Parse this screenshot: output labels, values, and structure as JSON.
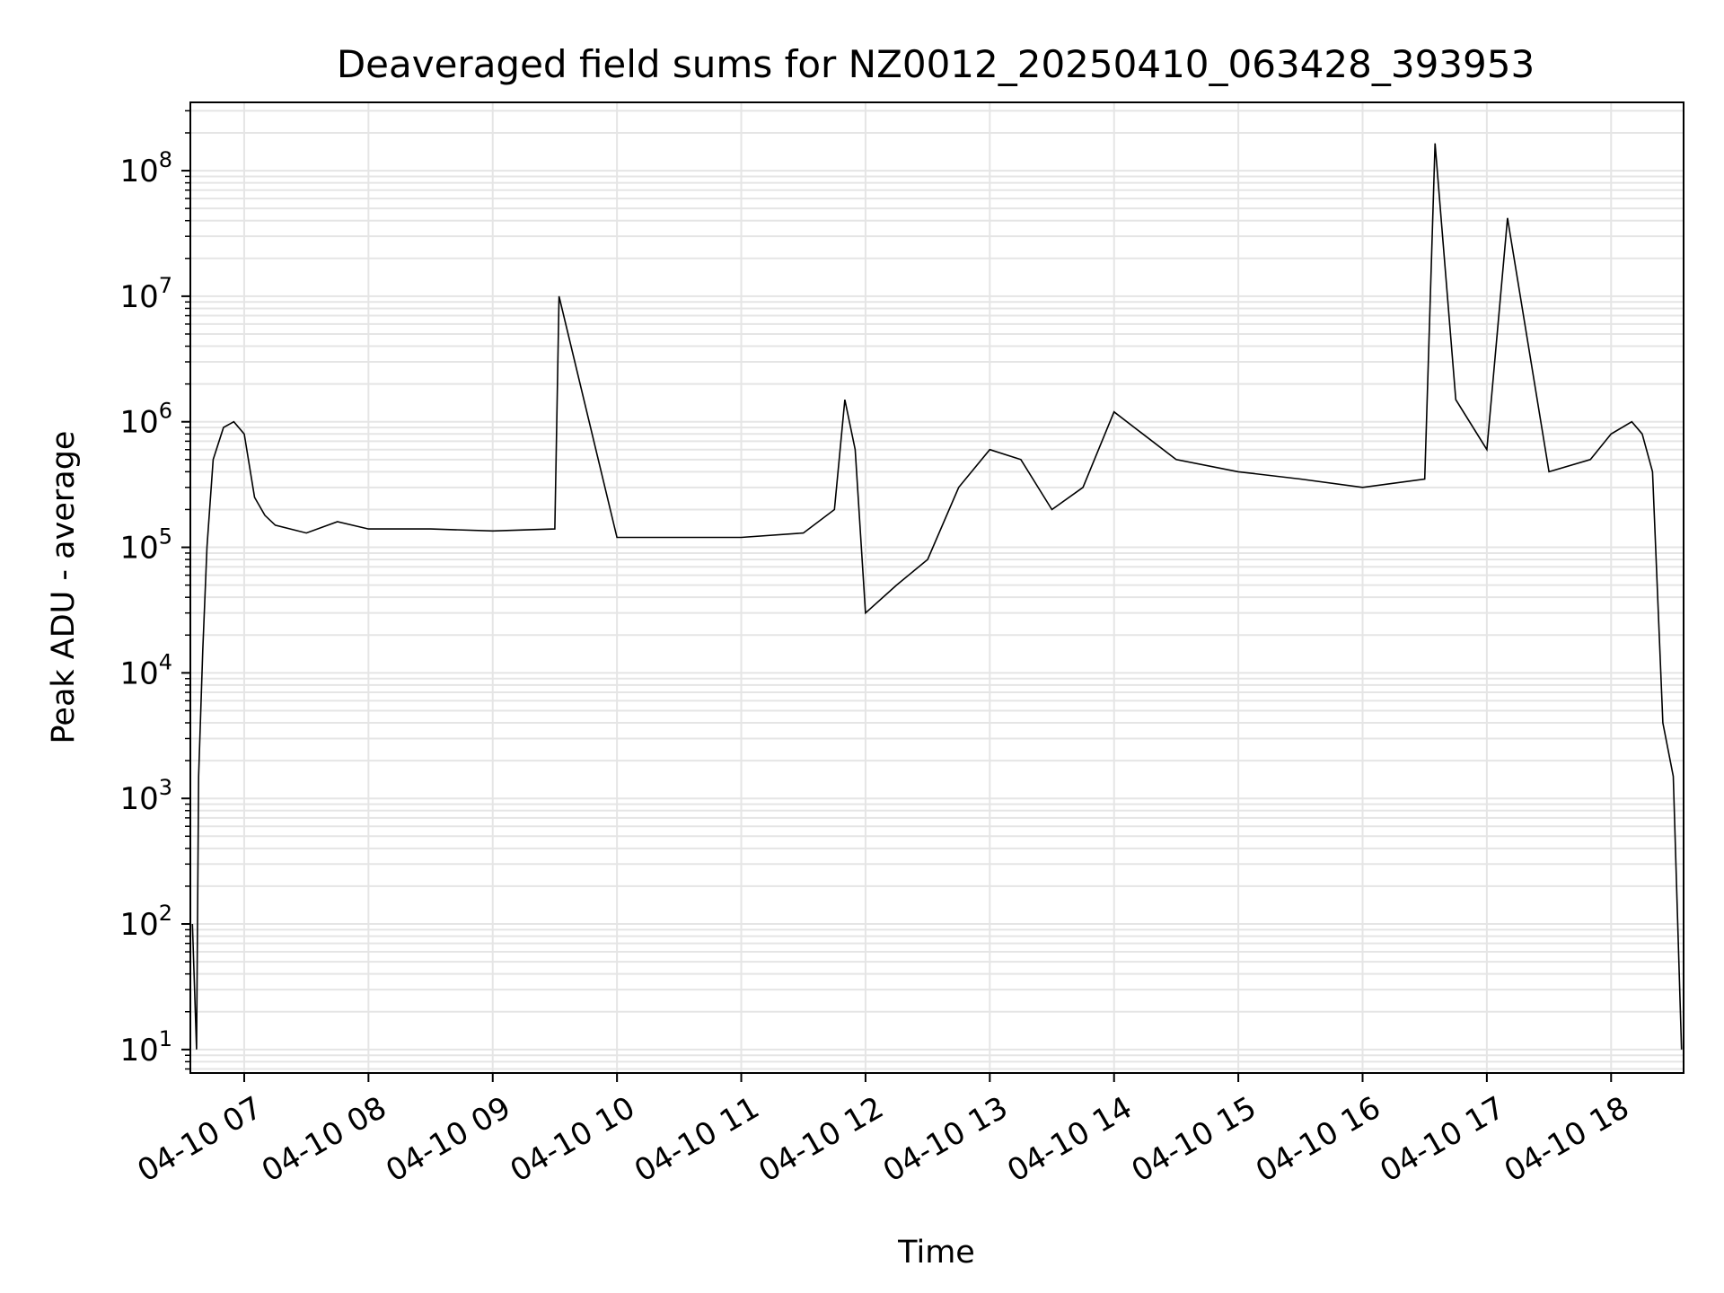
{
  "chart_data": {
    "type": "line",
    "title": "Deaveraged field sums for NZ0012_20250410_063428_393953",
    "xlabel": "Time",
    "ylabel": "Peak ADU - average",
    "y_scale": "log",
    "ylim": [
      6.5,
      350000000
    ],
    "xlim": [
      "2025-04-10 06:34",
      "2025-04-10 18:35"
    ],
    "x_tick_labels": [
      "04-10 07",
      "04-10 08",
      "04-10 09",
      "04-10 10",
      "04-10 11",
      "04-10 12",
      "04-10 13",
      "04-10 14",
      "04-10 15",
      "04-10 16",
      "04-10 17",
      "04-10 18"
    ],
    "y_tick_values": [
      10,
      100,
      1000,
      10000,
      100000,
      1000000,
      10000000,
      100000000
    ],
    "y_tick_labels": [
      {
        "base": "10",
        "exp": "1"
      },
      {
        "base": "10",
        "exp": "2"
      },
      {
        "base": "10",
        "exp": "3"
      },
      {
        "base": "10",
        "exp": "4"
      },
      {
        "base": "10",
        "exp": "5"
      },
      {
        "base": "10",
        "exp": "6"
      },
      {
        "base": "10",
        "exp": "7"
      },
      {
        "base": "10",
        "exp": "8"
      }
    ],
    "grid": true,
    "line_color": "#000000",
    "grid_color": "#e5e5e5",
    "series": [
      {
        "x": [
          "2025-04-10 06:35",
          "2025-04-10 06:37",
          "2025-04-10 06:38",
          "2025-04-10 06:40",
          "2025-04-10 06:42",
          "2025-04-10 06:45",
          "2025-04-10 06:50",
          "2025-04-10 06:55",
          "2025-04-10 07:00",
          "2025-04-10 07:05",
          "2025-04-10 07:10",
          "2025-04-10 07:15",
          "2025-04-10 07:30",
          "2025-04-10 07:45",
          "2025-04-10 08:00",
          "2025-04-10 08:30",
          "2025-04-10 09:00",
          "2025-04-10 09:30",
          "2025-04-10 09:32",
          "2025-04-10 10:00",
          "2025-04-10 10:30",
          "2025-04-10 11:00",
          "2025-04-10 11:30",
          "2025-04-10 11:45",
          "2025-04-10 11:50",
          "2025-04-10 11:55",
          "2025-04-10 12:00",
          "2025-04-10 12:15",
          "2025-04-10 12:30",
          "2025-04-10 12:45",
          "2025-04-10 13:00",
          "2025-04-10 13:15",
          "2025-04-10 13:30",
          "2025-04-10 13:45",
          "2025-04-10 14:00",
          "2025-04-10 14:30",
          "2025-04-10 15:00",
          "2025-04-10 15:30",
          "2025-04-10 16:00",
          "2025-04-10 16:30",
          "2025-04-10 16:35",
          "2025-04-10 16:45",
          "2025-04-10 17:00",
          "2025-04-10 17:10",
          "2025-04-10 17:30",
          "2025-04-10 17:50",
          "2025-04-10 18:00",
          "2025-04-10 18:10",
          "2025-04-10 18:15",
          "2025-04-10 18:20",
          "2025-04-10 18:25",
          "2025-04-10 18:30",
          "2025-04-10 18:34"
        ],
        "y": [
          100,
          10,
          1500,
          15000,
          100000,
          500000,
          900000,
          1000000,
          800000,
          250000,
          180000,
          150000,
          130000,
          160000,
          140000,
          140000,
          135000,
          140000,
          10000000,
          120000,
          120000,
          120000,
          130000,
          200000,
          1500000,
          600000,
          30000,
          50000,
          80000,
          300000,
          600000,
          500000,
          200000,
          300000,
          1200000,
          500000,
          400000,
          350000,
          300000,
          350000,
          165000000,
          1500000,
          600000,
          42000000,
          400000,
          500000,
          800000,
          1000000,
          800000,
          400000,
          4000,
          1500,
          10
        ]
      }
    ]
  }
}
